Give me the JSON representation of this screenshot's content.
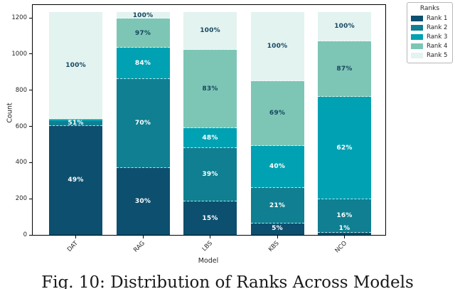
{
  "figure": {
    "caption": "Fig. 10: Distribution of Ranks Across Models"
  },
  "chart_data": {
    "type": "bar",
    "stacked": true,
    "title": "",
    "xlabel": "Model",
    "ylabel": "Count",
    "categories": [
      "DAT",
      "RAG",
      "LBS",
      "KBS",
      "NCO"
    ],
    "yticks": [
      0,
      200,
      400,
      600,
      800,
      1000,
      1200
    ],
    "ylim": [
      0,
      1280
    ],
    "grid": false,
    "total_count_per_bar_approx": 1232,
    "legend": {
      "title": "Ranks",
      "position": "upper-right-outside"
    },
    "series": [
      {
        "name": "Rank 1",
        "color": "#0d4f6e",
        "pct": [
          49,
          30,
          15,
          5,
          1
        ],
        "counts_approx": [
          604,
          370,
          185,
          62,
          12
        ]
      },
      {
        "name": "Rank 2",
        "color": "#0f7f91",
        "pct": [
          2,
          40,
          24,
          16,
          15
        ],
        "counts_approx": [
          25,
          493,
          296,
          197,
          185
        ]
      },
      {
        "name": "Rank 3",
        "color": "#00a1b2",
        "pct": [
          0.7,
          14,
          9,
          19,
          46
        ],
        "counts_approx": [
          9,
          172,
          111,
          234,
          567
        ]
      },
      {
        "name": "Rank 4",
        "color": "#7dc6b5",
        "pct": [
          0.3,
          13,
          35,
          29,
          25
        ],
        "counts_approx": [
          4,
          160,
          431,
          357,
          308
        ]
      },
      {
        "name": "Rank 5",
        "color": "#e2f3f0",
        "pct": [
          48,
          3,
          17,
          31,
          13
        ],
        "counts_approx": [
          590,
          37,
          209,
          382,
          160
        ]
      }
    ],
    "bar_labels": [
      {
        "category": "DAT",
        "labels": [
          {
            "series": 0,
            "text": "49%"
          },
          {
            "series": 1,
            "text": "51%"
          },
          {
            "series": 4,
            "text": "100%"
          }
        ]
      },
      {
        "category": "RAG",
        "labels": [
          {
            "series": 0,
            "text": "30%"
          },
          {
            "series": 1,
            "text": "70%"
          },
          {
            "series": 2,
            "text": "84%"
          },
          {
            "series": 3,
            "text": "97%"
          },
          {
            "series": 4,
            "text": "100%"
          }
        ]
      },
      {
        "category": "LBS",
        "labels": [
          {
            "series": 0,
            "text": "15%"
          },
          {
            "series": 1,
            "text": "39%"
          },
          {
            "series": 2,
            "text": "48%"
          },
          {
            "series": 3,
            "text": "83%"
          },
          {
            "series": 4,
            "text": "100%"
          }
        ]
      },
      {
        "category": "KBS",
        "labels": [
          {
            "series": 0,
            "text": "5%"
          },
          {
            "series": 1,
            "text": "21%"
          },
          {
            "series": 2,
            "text": "40%"
          },
          {
            "series": 3,
            "text": "69%"
          },
          {
            "series": 4,
            "text": "100%"
          }
        ]
      },
      {
        "category": "NCO",
        "labels": [
          {
            "series": 0,
            "text": "1%"
          },
          {
            "series": 1,
            "text": "16%"
          },
          {
            "series": 2,
            "text": "62%"
          },
          {
            "series": 3,
            "text": "87%"
          },
          {
            "series": 4,
            "text": "100%"
          }
        ]
      }
    ],
    "label_text_colors": {
      "on_dark_segment": "#ffffff",
      "on_light_segment": "#17465f"
    }
  }
}
